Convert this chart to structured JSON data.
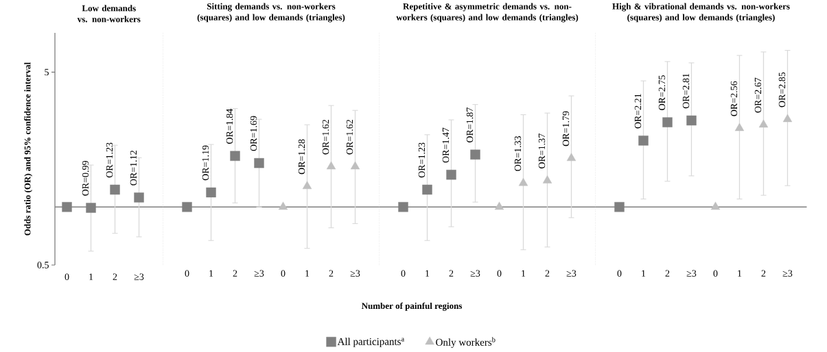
{
  "chart_data": [
    {
      "type": "scatter",
      "title": "Low demands vs. non-workers",
      "ylabel": "Odds ratio (OR) and 95% confidence interval",
      "categories": [
        "0",
        "1",
        "2",
        "≥3"
      ],
      "log": true,
      "ylim": [
        0.5,
        8
      ],
      "yticks": [
        0.5,
        5
      ],
      "ref_lines": [
        {
          "axis": "y",
          "value": 1,
          "color": "#7f7f7f"
        }
      ],
      "series": [
        {
          "color": "#7f7f7f",
          "marker": "square",
          "values": [
            1,
            0.99,
            1.23,
            1.12
          ],
          "errors": [
            null,
            [
              0.59,
              1.65
            ],
            [
              0.73,
              2.09
            ],
            [
              0.7,
              1.8
            ]
          ],
          "value_labels": [
            null,
            "OR=0.99",
            "OR=1.23",
            "OR=1.12"
          ]
        }
      ]
    },
    {
      "type": "scatter",
      "title": "Sitting demands vs. non-workers (squares) and low demands (triangles)",
      "xlabel": "Number of painful regions",
      "categories": [
        "0",
        "1",
        "2",
        "≥3",
        "0",
        "1",
        "2",
        "≥3"
      ],
      "log": true,
      "ylim": [
        0.5,
        8
      ],
      "tick_labels": "x",
      "legend": "bottom",
      "ref_lines": [
        {
          "axis": "y",
          "value": 1,
          "color": "#7f7f7f"
        }
      ],
      "series": [
        {
          "name": "All participants$^{a}$",
          "color": "#7f7f7f",
          "marker": "square",
          "values": [
            1,
            1.19,
            1.84,
            1.69,
            null,
            null,
            null,
            null
          ],
          "errors": [
            null,
            [
              0.67,
              2.11
            ],
            [
              1.05,
              3.24
            ],
            [
              1.0,
              2.85
            ],
            null,
            null,
            null,
            null
          ],
          "value_labels": [
            null,
            "OR=1.19",
            "OR=1.84",
            "OR=1.69",
            null,
            null,
            null,
            null
          ]
        },
        {
          "name": "Only workers$^{b}$",
          "color": "#bfbfbf",
          "marker": "triangle",
          "values": [
            null,
            null,
            null,
            null,
            1,
            1.28,
            1.62,
            1.62
          ],
          "errors": [
            null,
            null,
            null,
            null,
            null,
            [
              0.61,
              2.67
            ],
            [
              0.78,
              3.36
            ],
            [
              0.82,
              3.17
            ]
          ],
          "value_labels": [
            null,
            null,
            null,
            null,
            null,
            "OR=1.28",
            "OR=1.62",
            "OR=1.62"
          ]
        }
      ]
    },
    {
      "type": "scatter",
      "title": "Repetitive & asymmetric demands vs. non-workers (squares) and low demands (triangles)",
      "categories": [
        "0",
        "1",
        "2",
        "≥3",
        "0",
        "1",
        "2",
        "≥3"
      ],
      "log": true,
      "ylim": [
        0.5,
        8
      ],
      "tick_labels": "x",
      "ref_lines": [
        {
          "axis": "y",
          "value": 1,
          "color": "#7f7f7f"
        }
      ],
      "series": [
        {
          "color": "#7f7f7f",
          "marker": "square",
          "values": [
            1,
            1.23,
            1.47,
            1.87,
            null,
            null,
            null,
            null
          ],
          "errors": [
            null,
            [
              0.67,
              2.37
            ],
            [
              0.79,
              2.83
            ],
            [
              1.06,
              3.4
            ],
            null,
            null,
            null,
            null
          ],
          "value_labels": [
            null,
            "OR=1.23",
            "OR=1.47",
            "OR=1.87",
            null,
            null,
            null,
            null
          ]
        },
        {
          "color": "#bfbfbf",
          "marker": "triangle",
          "values": [
            null,
            null,
            null,
            null,
            1,
            1.33,
            1.37,
            1.79
          ],
          "errors": [
            null,
            null,
            null,
            null,
            null,
            [
              0.6,
              3.01
            ],
            [
              0.62,
              3.07
            ],
            [
              0.88,
              3.77
            ]
          ],
          "value_labels": [
            null,
            null,
            null,
            null,
            null,
            "OR=1.33",
            "OR=1.37",
            "OR=1.79"
          ]
        }
      ]
    },
    {
      "type": "scatter",
      "title": "High & vibrational demands vs. non-workers (squares) and low demands (triangles)",
      "categories": [
        "0",
        "1",
        "2",
        "≥3",
        "0",
        "1",
        "2",
        "≥3"
      ],
      "log": true,
      "ylim": [
        0.5,
        8
      ],
      "tick_labels": "x",
      "ref_lines": [
        {
          "axis": "y",
          "value": 1,
          "color": "#7f7f7f"
        }
      ],
      "series": [
        {
          "color": "#7f7f7f",
          "marker": "square",
          "values": [
            1,
            2.21,
            2.75,
            2.81,
            null,
            null,
            null,
            null
          ],
          "errors": [
            null,
            [
              1.1,
              4.51
            ],
            [
              1.36,
              5.68
            ],
            [
              1.45,
              5.59
            ],
            null,
            null,
            null,
            null
          ],
          "value_labels": [
            null,
            "OR=2.21",
            "OR=2.75",
            "OR=2.81",
            null,
            null,
            null,
            null
          ]
        },
        {
          "color": "#bfbfbf",
          "marker": "triangle",
          "values": [
            null,
            null,
            null,
            null,
            1,
            2.56,
            2.67,
            2.85
          ],
          "errors": [
            null,
            null,
            null,
            null,
            null,
            [
              1.1,
              6.11
            ],
            [
              1.15,
              6.37
            ],
            [
              1.29,
              6.49
            ]
          ],
          "value_labels": [
            null,
            null,
            null,
            null,
            null,
            "OR=2.56",
            "OR=2.67",
            "OR=2.85"
          ]
        }
      ]
    }
  ]
}
